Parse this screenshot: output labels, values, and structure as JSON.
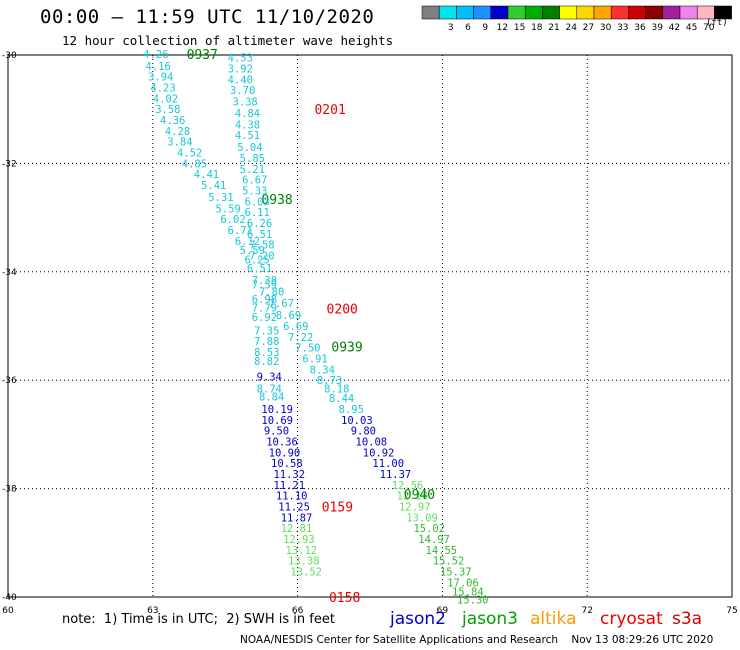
{
  "header": {
    "title": "00:00 – 11:59 UTC 11/10/2020",
    "subtitle": "12 hour collection of altimeter wave heights"
  },
  "color_scale": {
    "units": "(ft)",
    "bins": [
      {
        "label": "",
        "color": "#7f7f7f"
      },
      {
        "label": "3",
        "color": "#00e5ee"
      },
      {
        "label": "6",
        "color": "#00bfff"
      },
      {
        "label": "9",
        "color": "#1e90ff"
      },
      {
        "label": "12",
        "color": "#0000cd"
      },
      {
        "label": "15",
        "color": "#32cd32"
      },
      {
        "label": "18",
        "color": "#00b000"
      },
      {
        "label": "21",
        "color": "#008000"
      },
      {
        "label": "24",
        "color": "#ffff00"
      },
      {
        "label": "27",
        "color": "#ffd700"
      },
      {
        "label": "30",
        "color": "#ffa500"
      },
      {
        "label": "33",
        "color": "#ff3030"
      },
      {
        "label": "36",
        "color": "#cd0000"
      },
      {
        "label": "39",
        "color": "#8b0000"
      },
      {
        "label": "42",
        "color": "#a020a0"
      },
      {
        "label": "45",
        "color": "#ee82ee"
      },
      {
        "label": "70",
        "color": "#ffb6c1"
      },
      {
        "label": "",
        "color": "#000000"
      }
    ]
  },
  "colors": {
    "cyan": "#17c8d8",
    "blue": "#0000cd",
    "green_light": "#5fe05f",
    "green": "#32b832",
    "green_dark": "#008000",
    "red": "#ee0000",
    "orange": "#ff9900"
  },
  "satellites": [
    {
      "name": "jason2",
      "color": "#0000cd"
    },
    {
      "name": "jason3",
      "color": "#00a000"
    },
    {
      "name": "altika",
      "color": "#ff9900"
    },
    {
      "name": "cryosat",
      "color": "#ee0000"
    },
    {
      "name": "s3a",
      "color": "#cd0000"
    }
  ],
  "note": "note:  1) Time is in UTC;  2) SWH is in feet",
  "credit": "NOAA/NESDIS Center for Satellite Applications and Research    Nov 13 08:29:26 UTC 2020",
  "chart_data": {
    "type": "scatter",
    "title": "00:00 – 11:59 UTC 11/10/2020",
    "subtitle": "12 hour collection of altimeter wave heights",
    "xlabel": "",
    "ylabel": "",
    "xlim": [
      60,
      75
    ],
    "ylim": [
      -40,
      -30
    ],
    "x_ticks": [
      60,
      63,
      66,
      69,
      72,
      75
    ],
    "y_ticks": [
      -30,
      -32,
      -34,
      -36,
      -38,
      -40
    ],
    "grid": "dotted",
    "value_units": "ft",
    "passes": [
      {
        "name": "pass-a",
        "labels": [
          {
            "text": "0937",
            "lon": 63.7,
            "lat": -29.98,
            "color": "#008000"
          },
          {
            "text": "0938",
            "lon": 65.25,
            "lat": -32.66,
            "color": "#008000"
          },
          {
            "text": "0939",
            "lon": 66.7,
            "lat": -35.38,
            "color": "#008000"
          },
          {
            "text": "0940",
            "lon": 68.2,
            "lat": -38.1,
            "color": "#008000"
          }
        ],
        "points": [
          {
            "v": "4.26",
            "lon": 62.8,
            "lat": -29.98,
            "c": "#17c8d8"
          },
          {
            "v": "4.16",
            "lon": 62.85,
            "lat": -30.2,
            "c": "#17c8d8"
          },
          {
            "v": "3.94",
            "lon": 62.9,
            "lat": -30.4,
            "c": "#17c8d8"
          },
          {
            "v": "4.23",
            "lon": 62.95,
            "lat": -30.6,
            "c": "#17c8d8"
          },
          {
            "v": "4.02",
            "lon": 63.0,
            "lat": -30.8,
            "c": "#17c8d8"
          },
          {
            "v": "3.58",
            "lon": 63.05,
            "lat": -31.0,
            "c": "#17c8d8"
          },
          {
            "v": "4.36",
            "lon": 63.15,
            "lat": -31.2,
            "c": "#17c8d8"
          },
          {
            "v": "4.28",
            "lon": 63.25,
            "lat": -31.4,
            "c": "#17c8d8"
          },
          {
            "v": "3.84",
            "lon": 63.3,
            "lat": -31.6,
            "c": "#17c8d8"
          },
          {
            "v": "4.52",
            "lon": 63.5,
            "lat": -31.8,
            "c": "#17c8d8"
          },
          {
            "v": "4.85",
            "lon": 63.6,
            "lat": -32.0,
            "c": "#17c8d8"
          },
          {
            "v": "4.41",
            "lon": 63.85,
            "lat": -32.2,
            "c": "#17c8d8"
          },
          {
            "v": "5.41",
            "lon": 64.0,
            "lat": -32.4,
            "c": "#17c8d8"
          },
          {
            "v": "5.31",
            "lon": 64.15,
            "lat": -32.62,
            "c": "#17c8d8"
          },
          {
            "v": "5.59",
            "lon": 64.3,
            "lat": -32.83,
            "c": "#17c8d8"
          },
          {
            "v": "6.02",
            "lon": 64.4,
            "lat": -33.03,
            "c": "#17c8d8"
          },
          {
            "v": "6.71",
            "lon": 64.55,
            "lat": -33.23,
            "c": "#17c8d8"
          },
          {
            "v": "6.12",
            "lon": 64.7,
            "lat": -33.43,
            "c": "#17c8d8"
          },
          {
            "v": "5.59",
            "lon": 64.8,
            "lat": -33.6,
            "c": "#17c8d8"
          },
          {
            "v": "6.25",
            "lon": 64.9,
            "lat": -33.77,
            "c": "#17c8d8"
          },
          {
            "v": "6.51",
            "lon": 64.95,
            "lat": -33.93,
            "c": "#17c8d8"
          },
          {
            "v": "7.38",
            "lon": 65.05,
            "lat": -34.15,
            "c": "#17c8d8"
          },
          {
            "v": "7.80",
            "lon": 65.2,
            "lat": -34.36,
            "c": "#17c8d8"
          },
          {
            "v": "7.67",
            "lon": 65.4,
            "lat": -34.58,
            "c": "#17c8d8"
          },
          {
            "v": "8.69",
            "lon": 65.55,
            "lat": -34.8,
            "c": "#17c8d8"
          },
          {
            "v": "6.69",
            "lon": 65.7,
            "lat": -35.0,
            "c": "#17c8d8"
          },
          {
            "v": "7.22",
            "lon": 65.8,
            "lat": -35.2,
            "c": "#17c8d8"
          },
          {
            "v": "7.50",
            "lon": 65.95,
            "lat": -35.4,
            "c": "#17c8d8"
          },
          {
            "v": "6.91",
            "lon": 66.1,
            "lat": -35.6,
            "c": "#17c8d8"
          },
          {
            "v": "8.34",
            "lon": 66.25,
            "lat": -35.8,
            "c": "#17c8d8"
          },
          {
            "v": "8.73",
            "lon": 66.4,
            "lat": -36.0,
            "c": "#17c8d8"
          },
          {
            "v": "8.18",
            "lon": 66.55,
            "lat": -36.15,
            "c": "#17c8d8"
          },
          {
            "v": "8.44",
            "lon": 66.65,
            "lat": -36.33,
            "c": "#17c8d8"
          },
          {
            "v": "8.95",
            "lon": 66.85,
            "lat": -36.53,
            "c": "#17c8d8"
          },
          {
            "v": "10.03",
            "lon": 66.9,
            "lat": -36.73,
            "c": "#0000cd"
          },
          {
            "v": "9.80",
            "lon": 67.1,
            "lat": -36.93,
            "c": "#0000cd"
          },
          {
            "v": "10.08",
            "lon": 67.2,
            "lat": -37.13,
            "c": "#0000cd"
          },
          {
            "v": "10.92",
            "lon": 67.35,
            "lat": -37.33,
            "c": "#0000cd"
          },
          {
            "v": "11.00",
            "lon": 67.55,
            "lat": -37.53,
            "c": "#0000cd"
          },
          {
            "v": "11.37",
            "lon": 67.7,
            "lat": -37.73,
            "c": "#0000cd"
          },
          {
            "v": "12.56",
            "lon": 67.95,
            "lat": -37.93,
            "c": "#5fe05f"
          },
          {
            "v": "12.10",
            "lon": 68.05,
            "lat": -38.13,
            "c": "#5fe05f"
          },
          {
            "v": "12.97",
            "lon": 68.1,
            "lat": -38.33,
            "c": "#5fe05f"
          },
          {
            "v": "13.09",
            "lon": 68.25,
            "lat": -38.53,
            "c": "#5fe05f"
          },
          {
            "v": "15.02",
            "lon": 68.4,
            "lat": -38.73,
            "c": "#32b832"
          },
          {
            "v": "14.97",
            "lon": 68.5,
            "lat": -38.93,
            "c": "#32b832"
          },
          {
            "v": "14.55",
            "lon": 68.65,
            "lat": -39.13,
            "c": "#32b832"
          },
          {
            "v": "15.52",
            "lon": 68.8,
            "lat": -39.33,
            "c": "#32b832"
          },
          {
            "v": "15.37",
            "lon": 68.95,
            "lat": -39.53,
            "c": "#32b832"
          },
          {
            "v": "17.06",
            "lon": 69.1,
            "lat": -39.73,
            "c": "#32b832"
          },
          {
            "v": "15.84",
            "lon": 69.2,
            "lat": -39.9,
            "c": "#32b832"
          },
          {
            "v": "15.30",
            "lon": 69.3,
            "lat": -40.05,
            "c": "#32b832"
          }
        ]
      },
      {
        "name": "pass-b",
        "labels": [
          {
            "text": "0201",
            "lon": 66.35,
            "lat": -31.0,
            "color": "#ee0000"
          },
          {
            "text": "0200",
            "lon": 66.6,
            "lat": -34.68,
            "color": "#ee0000"
          },
          {
            "text": "0159",
            "lon": 66.5,
            "lat": -38.33,
            "color": "#ee0000"
          },
          {
            "text": "0158",
            "lon": 66.65,
            "lat": -40.0,
            "color": "#ee0000"
          }
        ],
        "points": [
          {
            "v": "4.53",
            "lon": 64.55,
            "lat": -30.05,
            "c": "#17c8d8"
          },
          {
            "v": "3.92",
            "lon": 64.55,
            "lat": -30.25,
            "c": "#17c8d8"
          },
          {
            "v": "4.40",
            "lon": 64.55,
            "lat": -30.45,
            "c": "#17c8d8"
          },
          {
            "v": "3.70",
            "lon": 64.6,
            "lat": -30.65,
            "c": "#17c8d8"
          },
          {
            "v": "3.38",
            "lon": 64.65,
            "lat": -30.86,
            "c": "#17c8d8"
          },
          {
            "v": "4.84",
            "lon": 64.7,
            "lat": -31.07,
            "c": "#17c8d8"
          },
          {
            "v": "4.38",
            "lon": 64.7,
            "lat": -31.28,
            "c": "#17c8d8"
          },
          {
            "v": "4.51",
            "lon": 64.7,
            "lat": -31.48,
            "c": "#17c8d8"
          },
          {
            "v": "5.04",
            "lon": 64.75,
            "lat": -31.7,
            "c": "#17c8d8"
          },
          {
            "v": "5.85",
            "lon": 64.8,
            "lat": -31.9,
            "c": "#17c8d8"
          },
          {
            "v": "5.21",
            "lon": 64.8,
            "lat": -32.1,
            "c": "#17c8d8"
          },
          {
            "v": "6.67",
            "lon": 64.85,
            "lat": -32.3,
            "c": "#17c8d8"
          },
          {
            "v": "5.33",
            "lon": 64.85,
            "lat": -32.5,
            "c": "#17c8d8"
          },
          {
            "v": "6.03",
            "lon": 64.9,
            "lat": -32.7,
            "c": "#17c8d8"
          },
          {
            "v": "6.11",
            "lon": 64.9,
            "lat": -32.9,
            "c": "#17c8d8"
          },
          {
            "v": "6.26",
            "lon": 64.95,
            "lat": -33.1,
            "c": "#17c8d8"
          },
          {
            "v": "6.51",
            "lon": 64.95,
            "lat": -33.3,
            "c": "#17c8d8"
          },
          {
            "v": "7.58",
            "lon": 65.0,
            "lat": -33.5,
            "c": "#17c8d8"
          },
          {
            "v": "7.20",
            "lon": 65.0,
            "lat": -33.7,
            "c": "#17c8d8"
          },
          {
            "v": "7.59",
            "lon": 65.05,
            "lat": -34.23,
            "c": "#17c8d8"
          },
          {
            "v": "6.98",
            "lon": 65.05,
            "lat": -34.5,
            "c": "#17c8d8"
          },
          {
            "v": "7.79",
            "lon": 65.05,
            "lat": -34.66,
            "c": "#17c8d8"
          },
          {
            "v": "6.92",
            "lon": 65.05,
            "lat": -34.83,
            "c": "#17c8d8"
          },
          {
            "v": "7.35",
            "lon": 65.1,
            "lat": -35.08,
            "c": "#17c8d8"
          },
          {
            "v": "7.88",
            "lon": 65.1,
            "lat": -35.28,
            "c": "#17c8d8"
          },
          {
            "v": "8.53",
            "lon": 65.1,
            "lat": -35.48,
            "c": "#17c8d8"
          },
          {
            "v": "8.82",
            "lon": 65.1,
            "lat": -35.65,
            "c": "#17c8d8"
          },
          {
            "v": "9.34",
            "lon": 65.15,
            "lat": -35.93,
            "c": "#0000cd"
          },
          {
            "v": "8.74",
            "lon": 65.15,
            "lat": -36.15,
            "c": "#17c8d8"
          },
          {
            "v": "8.84",
            "lon": 65.2,
            "lat": -36.3,
            "c": "#17c8d8"
          },
          {
            "v": "10.19",
            "lon": 65.25,
            "lat": -36.53,
            "c": "#0000cd"
          },
          {
            "v": "10.69",
            "lon": 65.25,
            "lat": -36.73,
            "c": "#0000cd"
          },
          {
            "v": "9.50",
            "lon": 65.3,
            "lat": -36.93,
            "c": "#0000cd"
          },
          {
            "v": "10.36",
            "lon": 65.35,
            "lat": -37.13,
            "c": "#0000cd"
          },
          {
            "v": "10.90",
            "lon": 65.4,
            "lat": -37.33,
            "c": "#0000cd"
          },
          {
            "v": "10.58",
            "lon": 65.45,
            "lat": -37.53,
            "c": "#0000cd"
          },
          {
            "v": "11.32",
            "lon": 65.5,
            "lat": -37.73,
            "c": "#0000cd"
          },
          {
            "v": "11.21",
            "lon": 65.5,
            "lat": -37.93,
            "c": "#0000cd"
          },
          {
            "v": "11.10",
            "lon": 65.55,
            "lat": -38.13,
            "c": "#0000cd"
          },
          {
            "v": "11.25",
            "lon": 65.6,
            "lat": -38.33,
            "c": "#0000cd"
          },
          {
            "v": "11.87",
            "lon": 65.65,
            "lat": -38.53,
            "c": "#0000cd"
          },
          {
            "v": "12.81",
            "lon": 65.65,
            "lat": -38.73,
            "c": "#5fe05f"
          },
          {
            "v": "12.93",
            "lon": 65.7,
            "lat": -38.93,
            "c": "#5fe05f"
          },
          {
            "v": "13.12",
            "lon": 65.75,
            "lat": -39.13,
            "c": "#5fe05f"
          },
          {
            "v": "13.38",
            "lon": 65.8,
            "lat": -39.33,
            "c": "#5fe05f"
          },
          {
            "v": "13.52",
            "lon": 65.85,
            "lat": -39.53,
            "c": "#5fe05f"
          }
        ]
      }
    ]
  }
}
